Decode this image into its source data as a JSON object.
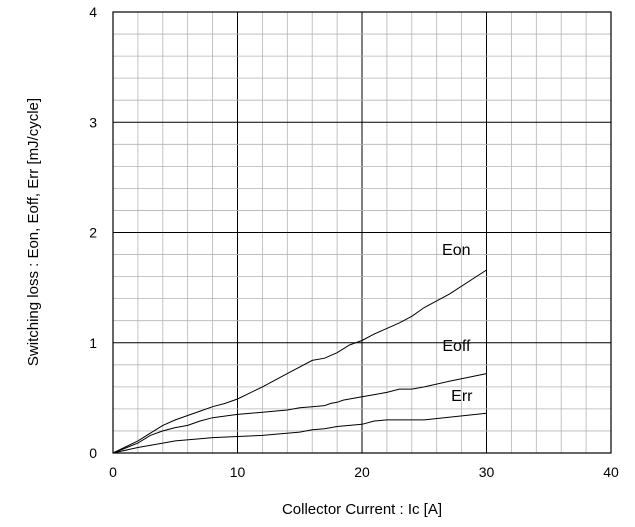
{
  "chart_data": {
    "type": "line",
    "xlabel": "Collector Current : Ic [A]",
    "ylabel": "Switching loss : Eon, Eoff, Err [mJ/cycle]",
    "xlim": [
      0,
      40
    ],
    "ylim": [
      0,
      4
    ],
    "x_ticks": [
      "0",
      "10",
      "20",
      "30",
      "40"
    ],
    "y_ticks": [
      "0",
      "1",
      "2",
      "3",
      "4"
    ],
    "x_tick_values": [
      0,
      10,
      20,
      30,
      40
    ],
    "y_tick_values": [
      0,
      1,
      2,
      3,
      4
    ],
    "grid": true,
    "series": [
      {
        "name": "Eon",
        "x": [
          0,
          2,
          3,
          4,
          5,
          6,
          7,
          8,
          9,
          10,
          12,
          14,
          16,
          17,
          18,
          19,
          20,
          21,
          22,
          23,
          24,
          25,
          27,
          30
        ],
        "y": [
          0,
          0.11,
          0.18,
          0.25,
          0.3,
          0.34,
          0.38,
          0.42,
          0.45,
          0.49,
          0.6,
          0.72,
          0.84,
          0.86,
          0.91,
          0.98,
          1.02,
          1.08,
          1.13,
          1.18,
          1.24,
          1.32,
          1.44,
          1.66
        ]
      },
      {
        "name": "Eoff",
        "x": [
          0,
          2,
          3,
          4,
          5,
          6,
          7,
          8,
          10,
          12,
          14,
          15,
          16,
          17,
          17.5,
          18,
          18.5,
          19,
          20,
          21,
          22,
          23,
          24,
          25,
          27,
          30
        ],
        "y": [
          0,
          0.09,
          0.16,
          0.2,
          0.23,
          0.25,
          0.29,
          0.32,
          0.35,
          0.37,
          0.39,
          0.41,
          0.42,
          0.43,
          0.45,
          0.46,
          0.48,
          0.49,
          0.51,
          0.53,
          0.55,
          0.58,
          0.58,
          0.6,
          0.65,
          0.72
        ]
      },
      {
        "name": "Err",
        "x": [
          0,
          2,
          4,
          5,
          7,
          8,
          10,
          12,
          15,
          16,
          17,
          18,
          19,
          20,
          21,
          22,
          25,
          30
        ],
        "y": [
          0,
          0.05,
          0.09,
          0.11,
          0.13,
          0.14,
          0.15,
          0.16,
          0.19,
          0.21,
          0.22,
          0.24,
          0.25,
          0.26,
          0.29,
          0.3,
          0.3,
          0.36
        ]
      }
    ]
  }
}
